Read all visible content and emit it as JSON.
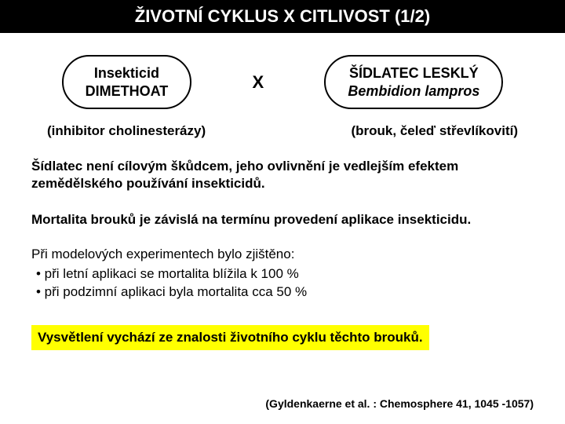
{
  "title": "ŽIVOTNÍ CYKLUS   X   CITLIVOST (1/2)",
  "left_pill": {
    "line1": "Insekticid",
    "line2": "DIMETHOAT"
  },
  "center_x": "X",
  "right_pill": {
    "line1": "ŠÍDLATEC LESKLÝ",
    "line2": "Bembidion lampros"
  },
  "sub_left": "(inhibitor cholinesterázy)",
  "sub_right": "(brouk, čeleď střevlíkovití)",
  "para1": "Šídlatec není cílovým škůdcem, jeho ovlivnění je vedlejším efektem zemědělského používání insekticidů.",
  "para2": "Mortalita brouků je závislá na termínu provedení aplikace insekticidu.",
  "bullets": {
    "head": "Při modelových experimentech  bylo zjištěno:",
    "items": [
      "• při letní aplikaci  se mortalita blížila k 100 %",
      "• při podzimní aplikaci byla mortalita cca 50 %"
    ]
  },
  "highlight": "Vysvětlení vychází ze znalosti životního cyklu těchto brouků.",
  "citation": "(Gyldenkaerne et al. : Chemosphere 41, 1045 -1057)",
  "colors": {
    "title_bg": "#000000",
    "title_fg": "#ffffff",
    "highlight_bg": "#ffff00",
    "page_bg": "#ffffff",
    "text": "#000000"
  },
  "fonts": {
    "title_size_pt": 22,
    "body_size_pt": 17,
    "citation_size_pt": 14
  }
}
